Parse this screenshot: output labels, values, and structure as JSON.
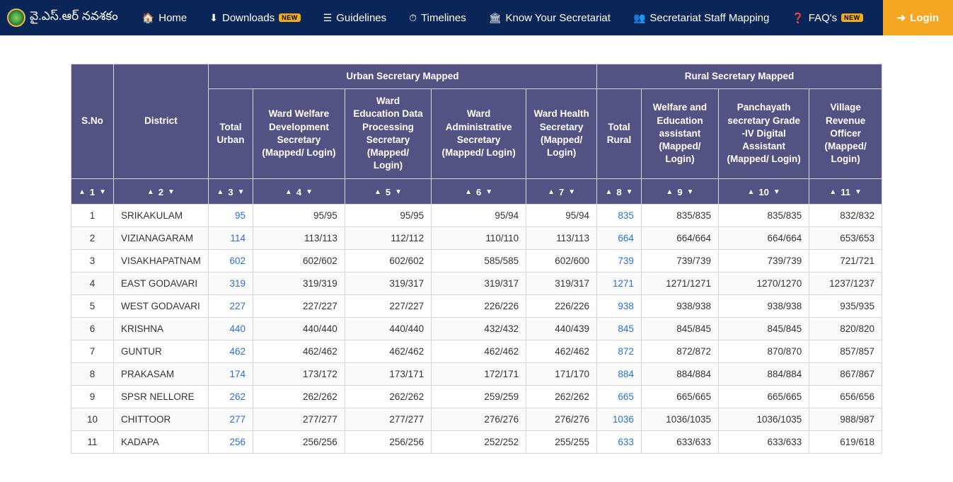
{
  "nav": {
    "brand": "వై.ఎస్.ఆర్ నవశకం",
    "items": [
      {
        "icon": "🏠",
        "label": "Home",
        "new": false
      },
      {
        "icon": "⬇",
        "label": "Downloads",
        "new": true
      },
      {
        "icon": "☰",
        "label": "Guidelines",
        "new": false
      },
      {
        "icon": "⏱",
        "label": "Timelines",
        "new": false
      },
      {
        "icon": "🏛",
        "label": "Know Your Secretariat",
        "new": false
      },
      {
        "icon": "👥",
        "label": "Secretariat Staff Mapping",
        "new": false
      },
      {
        "icon": "❓",
        "label": "FAQ's",
        "new": true
      }
    ],
    "login": "Login",
    "new_badge_text": "NEW"
  },
  "table": {
    "headers": {
      "sno": "S.No",
      "district": "District",
      "urban_group": "Urban Secretary Mapped",
      "rural_group": "Rural Secretary Mapped",
      "total_urban": "Total Urban",
      "ward_welfare": "Ward Welfare Development Secretary (Mapped/ Login)",
      "ward_edu": "Ward Education Data Processing Secretary (Mapped/ Login)",
      "ward_admin": "Ward Administrative Secretary (Mapped/ Login)",
      "ward_health": "Ward Health Secretary (Mapped/ Login)",
      "total_rural": "Total Rural",
      "welfare_edu": "Welfare and Education assistant (Mapped/ Login)",
      "panchayath": "Panchayath secretary Grade -IV Digital Assistant (Mapped/ Login)",
      "vro": "Village Revenue Officer (Mapped/ Login)"
    },
    "sort_cols": [
      "1",
      "2",
      "3",
      "4",
      "5",
      "6",
      "7",
      "8",
      "9",
      "10",
      "11"
    ],
    "rows": [
      {
        "sno": 1,
        "district": "SRIKAKULAM",
        "tu": "95",
        "ww": "95/95",
        "we": "95/95",
        "wa": "95/94",
        "wh": "95/94",
        "tr": "835",
        "wea": "835/835",
        "pan": "835/835",
        "vro": "832/832"
      },
      {
        "sno": 2,
        "district": "VIZIANAGARAM",
        "tu": "114",
        "ww": "113/113",
        "we": "112/112",
        "wa": "110/110",
        "wh": "113/113",
        "tr": "664",
        "wea": "664/664",
        "pan": "664/664",
        "vro": "653/653"
      },
      {
        "sno": 3,
        "district": "VISAKHAPATNAM",
        "tu": "602",
        "ww": "602/602",
        "we": "602/602",
        "wa": "585/585",
        "wh": "602/600",
        "tr": "739",
        "wea": "739/739",
        "pan": "739/739",
        "vro": "721/721"
      },
      {
        "sno": 4,
        "district": "EAST GODAVARI",
        "tu": "319",
        "ww": "319/319",
        "we": "319/317",
        "wa": "319/317",
        "wh": "319/317",
        "tr": "1271",
        "wea": "1271/1271",
        "pan": "1270/1270",
        "vro": "1237/1237"
      },
      {
        "sno": 5,
        "district": "WEST GODAVARI",
        "tu": "227",
        "ww": "227/227",
        "we": "227/227",
        "wa": "226/226",
        "wh": "226/226",
        "tr": "938",
        "wea": "938/938",
        "pan": "938/938",
        "vro": "935/935"
      },
      {
        "sno": 6,
        "district": "KRISHNA",
        "tu": "440",
        "ww": "440/440",
        "we": "440/440",
        "wa": "432/432",
        "wh": "440/439",
        "tr": "845",
        "wea": "845/845",
        "pan": "845/845",
        "vro": "820/820"
      },
      {
        "sno": 7,
        "district": "GUNTUR",
        "tu": "462",
        "ww": "462/462",
        "we": "462/462",
        "wa": "462/462",
        "wh": "462/462",
        "tr": "872",
        "wea": "872/872",
        "pan": "870/870",
        "vro": "857/857"
      },
      {
        "sno": 8,
        "district": "PRAKASAM",
        "tu": "174",
        "ww": "173/172",
        "we": "173/171",
        "wa": "172/171",
        "wh": "171/170",
        "tr": "884",
        "wea": "884/884",
        "pan": "884/884",
        "vro": "867/867"
      },
      {
        "sno": 9,
        "district": "SPSR NELLORE",
        "tu": "262",
        "ww": "262/262",
        "we": "262/262",
        "wa": "259/259",
        "wh": "262/262",
        "tr": "665",
        "wea": "665/665",
        "pan": "665/665",
        "vro": "656/656"
      },
      {
        "sno": 10,
        "district": "CHITTOOR",
        "tu": "277",
        "ww": "277/277",
        "we": "277/277",
        "wa": "276/276",
        "wh": "276/276",
        "tr": "1036",
        "wea": "1036/1035",
        "pan": "1036/1035",
        "vro": "988/987"
      },
      {
        "sno": 11,
        "district": "KADAPA",
        "tu": "256",
        "ww": "256/256",
        "we": "256/256",
        "wa": "252/252",
        "wh": "255/255",
        "tr": "633",
        "wea": "633/633",
        "pan": "633/633",
        "vro": "619/618"
      }
    ]
  }
}
